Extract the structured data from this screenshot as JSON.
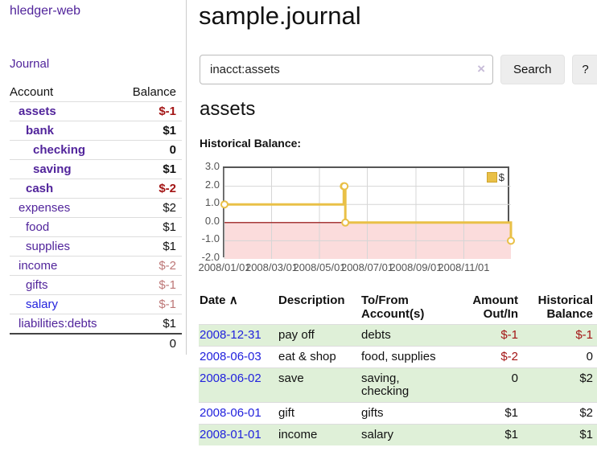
{
  "app": {
    "brand": "hledger-web",
    "nav_journal": "Journal"
  },
  "sidebar": {
    "headers": {
      "account": "Account",
      "balance": "Balance"
    },
    "accounts": [
      {
        "name": "assets",
        "depth": 1,
        "bold": true,
        "blue": false,
        "balance": "$-1",
        "balance_style": "neg-strong"
      },
      {
        "name": "bank",
        "depth": 2,
        "bold": true,
        "blue": false,
        "balance": "$1",
        "balance_style": "pos"
      },
      {
        "name": "checking",
        "depth": 3,
        "bold": true,
        "blue": false,
        "balance": "0",
        "balance_style": "pos"
      },
      {
        "name": "saving",
        "depth": 3,
        "bold": true,
        "blue": false,
        "balance": "$1",
        "balance_style": "pos"
      },
      {
        "name": "cash",
        "depth": 2,
        "bold": true,
        "blue": false,
        "balance": "$-2",
        "balance_style": "neg-strong"
      },
      {
        "name": "expenses",
        "depth": 1,
        "bold": false,
        "blue": false,
        "balance": "$2",
        "balance_style": "pos"
      },
      {
        "name": "food",
        "depth": 2,
        "bold": false,
        "blue": false,
        "balance": "$1",
        "balance_style": "pos"
      },
      {
        "name": "supplies",
        "depth": 2,
        "bold": false,
        "blue": false,
        "balance": "$1",
        "balance_style": "pos"
      },
      {
        "name": "income",
        "depth": 1,
        "bold": false,
        "blue": false,
        "balance": "$-2",
        "balance_style": "neg-faded"
      },
      {
        "name": "gifts",
        "depth": 2,
        "bold": false,
        "blue": false,
        "balance": "$-1",
        "balance_style": "neg-faded"
      },
      {
        "name": "salary",
        "depth": 2,
        "bold": false,
        "blue": true,
        "balance": "$-1",
        "balance_style": "neg-faded"
      },
      {
        "name": "liabilities:debts",
        "depth": 1,
        "bold": false,
        "blue": false,
        "balance": "$1",
        "balance_style": "pos"
      }
    ],
    "total": "0"
  },
  "header": {
    "title": "sample.journal"
  },
  "search": {
    "value": "inacct:assets",
    "clear_icon": "×",
    "search_button": "Search",
    "help_button": "?"
  },
  "account_page": {
    "heading": "assets",
    "chart_label": "Historical Balance:"
  },
  "chart_data": {
    "type": "line",
    "title": "Historical Balance",
    "step": true,
    "series": [
      {
        "name": "$",
        "color": "#e9c047",
        "points": [
          [
            "2008-01-01",
            1
          ],
          [
            "2008-06-01",
            2
          ],
          [
            "2008-06-02",
            2
          ],
          [
            "2008-06-03",
            0
          ],
          [
            "2008-12-31",
            -1
          ]
        ]
      }
    ],
    "xlim": [
      "2008-01-01",
      "2008-12-31"
    ],
    "ylim": [
      -2,
      3
    ],
    "x_ticks": [
      {
        "date": "2008-01-01",
        "label": "2008/01/01"
      },
      {
        "date": "2008-03-01",
        "label": "2008/03/01"
      },
      {
        "date": "2008-05-01",
        "label": "2008/05/01"
      },
      {
        "date": "2008-07-01",
        "label": "2008/07/01"
      },
      {
        "date": "2008-09-01",
        "label": "2008/09/01"
      },
      {
        "date": "2008-11-01",
        "label": "2008/11/01"
      }
    ],
    "y_ticks": [
      {
        "value": 3,
        "label": "3.0"
      },
      {
        "value": 2,
        "label": "2.0"
      },
      {
        "value": 1,
        "label": "1.0"
      },
      {
        "value": 0,
        "label": "0.0"
      },
      {
        "value": -1,
        "label": "-1.0"
      },
      {
        "value": -2,
        "label": "-2.0"
      }
    ],
    "grid_color": "#d6d6d6",
    "negative_region_color": "#fbdcdc",
    "zero_line_color": "#8f0000",
    "legend": {
      "entries": [
        "$"
      ],
      "position": "top-right"
    }
  },
  "register": {
    "headers": {
      "date": "Date",
      "description": "Description",
      "accounts": "To/From Account(s)",
      "amount": "Amount Out/In",
      "balance": "Historical Balance"
    },
    "sort_indicator": "∧",
    "rows": [
      {
        "date": "2008-12-31",
        "description": "pay off",
        "accounts": "debts",
        "amount": "$-1",
        "amount_neg": true,
        "balance": "$-1",
        "balance_neg": true,
        "shaded": true
      },
      {
        "date": "2008-06-03",
        "description": "eat & shop",
        "accounts": "food, supplies",
        "amount": "$-2",
        "amount_neg": true,
        "balance": "0",
        "balance_neg": false,
        "shaded": false
      },
      {
        "date": "2008-06-02",
        "description": "save",
        "accounts": "saving, checking",
        "amount": "0",
        "amount_neg": false,
        "balance": "$2",
        "balance_neg": false,
        "shaded": true
      },
      {
        "date": "2008-06-01",
        "description": "gift",
        "accounts": "gifts",
        "amount": "$1",
        "amount_neg": false,
        "balance": "$2",
        "balance_neg": false,
        "shaded": false
      },
      {
        "date": "2008-01-01",
        "description": "income",
        "accounts": "salary",
        "amount": "$1",
        "amount_neg": false,
        "balance": "$1",
        "balance_neg": false,
        "shaded": true
      }
    ]
  }
}
